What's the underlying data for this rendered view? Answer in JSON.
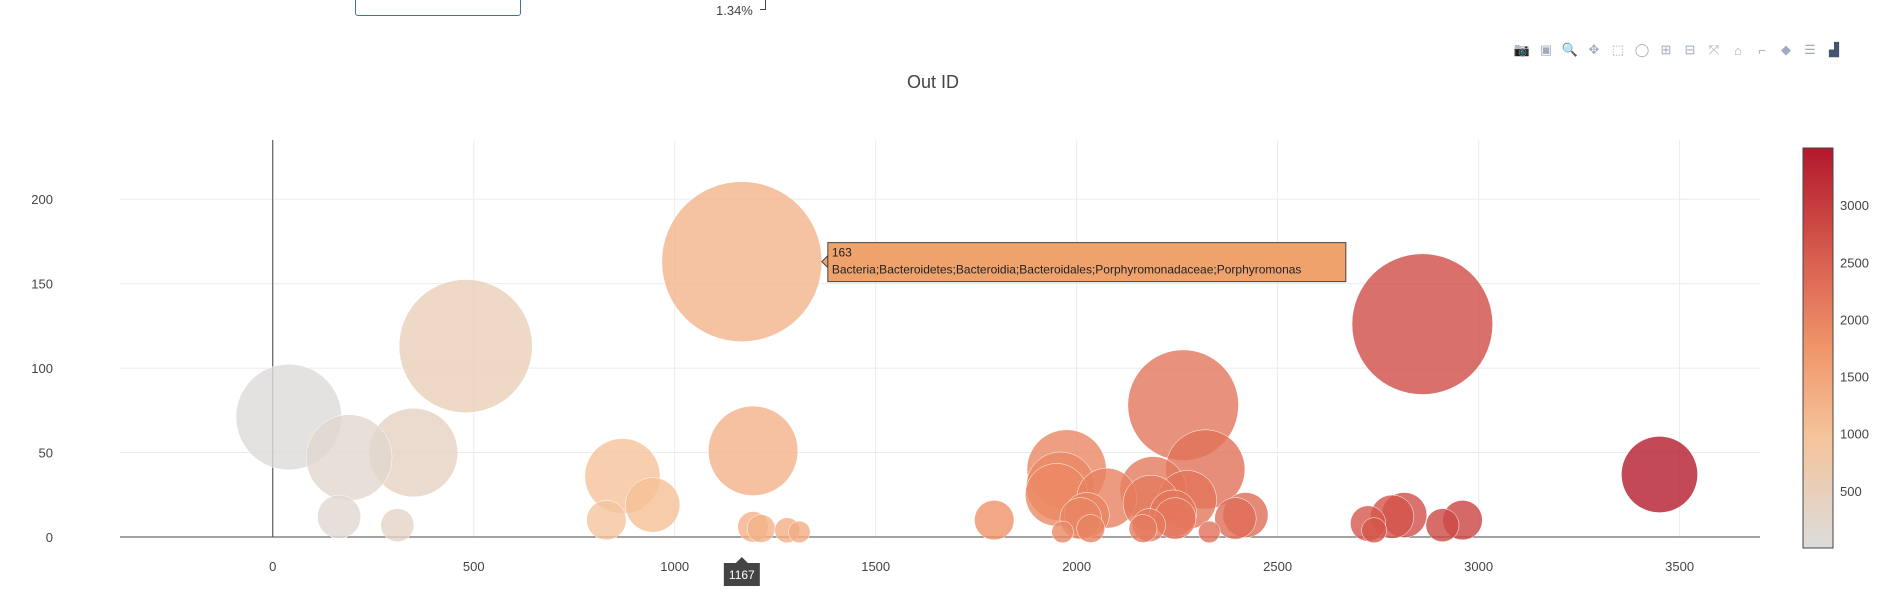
{
  "top_fragment": {
    "pie_label": "1.34%"
  },
  "modebar": {
    "buttons": [
      {
        "name": "camera-icon",
        "glyph": "📷"
      },
      {
        "name": "save-icon",
        "glyph": "▣"
      },
      {
        "name": "zoom-icon",
        "glyph": "🔍"
      },
      {
        "name": "pan-icon",
        "glyph": "✥"
      },
      {
        "name": "box-select-icon",
        "glyph": "⬚"
      },
      {
        "name": "lasso-select-icon",
        "glyph": "◯"
      },
      {
        "name": "zoom-in-icon",
        "glyph": "⊞"
      },
      {
        "name": "zoom-out-icon",
        "glyph": "⊟"
      },
      {
        "name": "autoscale-icon",
        "glyph": "⤧"
      },
      {
        "name": "reset-axes-icon",
        "glyph": "⌂"
      },
      {
        "name": "spike-lines-icon",
        "glyph": "⌐"
      },
      {
        "name": "hover-closest-icon",
        "glyph": "◆"
      },
      {
        "name": "hover-compare-icon",
        "glyph": "☰"
      },
      {
        "name": "plotly-logo-icon",
        "glyph": "▟"
      }
    ]
  },
  "chart_data": {
    "type": "scatter",
    "title": "Out ID",
    "xlabel": "",
    "ylabel": "",
    "xlim": [
      -380,
      3700
    ],
    "ylim": [
      0,
      235
    ],
    "x_ticks": [
      0,
      500,
      1000,
      1500,
      2000,
      2500,
      3000,
      3500
    ],
    "y_ticks": [
      0,
      50,
      100,
      150,
      200
    ],
    "grid": true,
    "marker_size": "proportional to y value",
    "colorscale": {
      "min": 0,
      "max": 3500,
      "stops": [
        "#dcdcdc",
        "#f5c39a",
        "#f0956a",
        "#d95f50",
        "#b2182b"
      ]
    },
    "colorbar_ticks": [
      500,
      1000,
      1500,
      2000,
      2500,
      3000
    ],
    "points": [
      {
        "x": 40,
        "y": 71
      },
      {
        "x": 190,
        "y": 47
      },
      {
        "x": 165,
        "y": 12
      },
      {
        "x": 310,
        "y": 7
      },
      {
        "x": 350,
        "y": 50
      },
      {
        "x": 480,
        "y": 113
      },
      {
        "x": 830,
        "y": 10
      },
      {
        "x": 870,
        "y": 36
      },
      {
        "x": 945,
        "y": 19
      },
      {
        "x": 1167,
        "y": 163
      },
      {
        "x": 1195,
        "y": 51
      },
      {
        "x": 1195,
        "y": 6
      },
      {
        "x": 1215,
        "y": 5
      },
      {
        "x": 1280,
        "y": 4
      },
      {
        "x": 1310,
        "y": 3
      },
      {
        "x": 1795,
        "y": 10
      },
      {
        "x": 1950,
        "y": 25
      },
      {
        "x": 1960,
        "y": 30
      },
      {
        "x": 1975,
        "y": 40
      },
      {
        "x": 1965,
        "y": 3
      },
      {
        "x": 2010,
        "y": 11
      },
      {
        "x": 2025,
        "y": 13
      },
      {
        "x": 2035,
        "y": 5
      },
      {
        "x": 2075,
        "y": 23
      },
      {
        "x": 2165,
        "y": 5
      },
      {
        "x": 2180,
        "y": 7
      },
      {
        "x": 2185,
        "y": 20
      },
      {
        "x": 2190,
        "y": 28
      },
      {
        "x": 2245,
        "y": 11
      },
      {
        "x": 2240,
        "y": 14
      },
      {
        "x": 2265,
        "y": 78
      },
      {
        "x": 2275,
        "y": 22
      },
      {
        "x": 2320,
        "y": 40
      },
      {
        "x": 2330,
        "y": 3
      },
      {
        "x": 2395,
        "y": 11
      },
      {
        "x": 2420,
        "y": 13
      },
      {
        "x": 2725,
        "y": 8
      },
      {
        "x": 2740,
        "y": 4
      },
      {
        "x": 2785,
        "y": 12
      },
      {
        "x": 2815,
        "y": 13
      },
      {
        "x": 2860,
        "y": 126
      },
      {
        "x": 2910,
        "y": 7
      },
      {
        "x": 2960,
        "y": 10
      },
      {
        "x": 3450,
        "y": 37
      }
    ],
    "hover": {
      "x": 1167,
      "y": 163,
      "x_label": "1167",
      "value": "163",
      "text": "Bacteria;Bacteroidetes;Bacteroidia;Bacteroidales;Porphyromonadaceae;Porphyromonas"
    }
  }
}
